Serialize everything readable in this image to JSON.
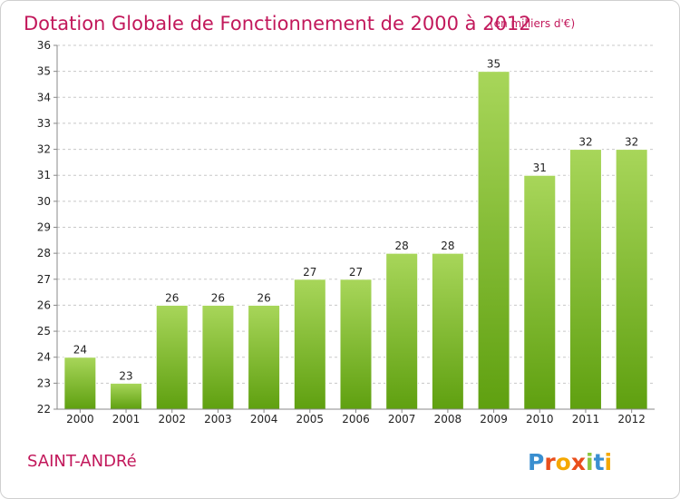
{
  "chart_data": {
    "type": "bar",
    "title": "Dotation Globale de Fonctionnement de 2000 à 2012",
    "subtitle": "(en milliers d'€)",
    "categories": [
      "2000",
      "2001",
      "2002",
      "2003",
      "2004",
      "2005",
      "2006",
      "2007",
      "2008",
      "2009",
      "2010",
      "2011",
      "2012"
    ],
    "values": [
      24,
      23,
      26,
      26,
      26,
      27,
      27,
      28,
      28,
      35,
      31,
      32,
      32
    ],
    "ylim": [
      22,
      36
    ],
    "yticks": [
      22,
      23,
      24,
      25,
      26,
      27,
      28,
      29,
      30,
      31,
      32,
      33,
      34,
      35,
      36
    ],
    "xlabel": "",
    "ylabel": "",
    "grid": "horizontal dashed",
    "colors": {
      "bar_top": "#a8d65a",
      "bar_bottom": "#5fa010",
      "title": "#c2185b"
    }
  },
  "footer": {
    "commune": "SAINT-ANDRé",
    "logo": {
      "text": "Proxiti",
      "colors": [
        "#3a8fd0",
        "#e94e1b",
        "#f5a800",
        "#e94e1b",
        "#8cc63f",
        "#3a8fd0",
        "#f5a800"
      ]
    }
  }
}
